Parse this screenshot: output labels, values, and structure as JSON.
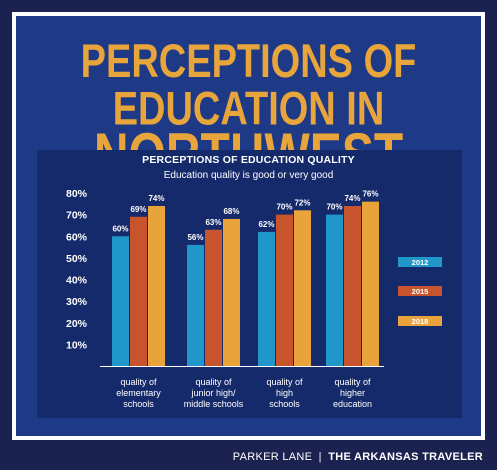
{
  "headline": {
    "line1": "PERCEPTIONS OF EDUCATION IN",
    "line2": "NORTHWEST ARKANSAS"
  },
  "credit": {
    "author": "PARKER LANE",
    "separator": "|",
    "publication": "THE ARKANSAS TRAVELER"
  },
  "colors": {
    "background": "#1c2250",
    "panel": "#1e3a86",
    "headline": "#e7a53c"
  },
  "chart_data": {
    "type": "bar",
    "title": "PERCEPTIONS OF EDUCATION QUALITY",
    "subtitle": "Education quality is good or very good",
    "categories": [
      [
        "quality of",
        "elementary",
        "schools"
      ],
      [
        "quality of",
        "junior high/",
        "middle schools"
      ],
      [
        "quality of",
        "high",
        "schools"
      ],
      [
        "quality of",
        "higher",
        "education"
      ]
    ],
    "series": [
      {
        "name": "2012",
        "color": "#2196c8",
        "values": [
          60,
          56,
          62,
          70
        ]
      },
      {
        "name": "2015",
        "color": "#c8542d",
        "values": [
          69,
          63,
          70,
          74
        ]
      },
      {
        "name": "2018",
        "color": "#e8a43a",
        "values": [
          74,
          68,
          72,
          76
        ]
      }
    ],
    "data_labels": [
      [
        "60%",
        "56%",
        "62%",
        "70%"
      ],
      [
        "69%",
        "63%",
        "70%",
        "74%"
      ],
      [
        "74%",
        "68%",
        "72%",
        "76%"
      ]
    ],
    "yticks": [
      "10%",
      "20%",
      "30%",
      "40%",
      "50%",
      "60%",
      "70%",
      "80%"
    ],
    "ylim": [
      0,
      80
    ],
    "legend_position": "right",
    "grid": false
  }
}
